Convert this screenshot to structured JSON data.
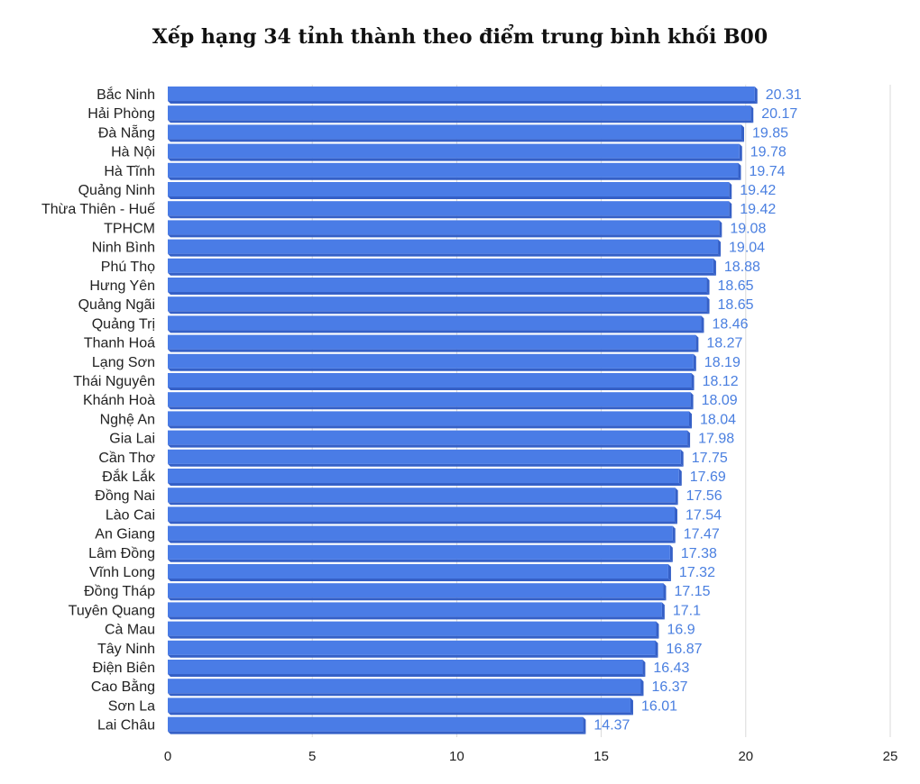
{
  "chart_data": {
    "type": "bar",
    "orientation": "horizontal",
    "title": "Xếp hạng 34 tỉnh thành theo điểm trung bình khối B00",
    "xlabel": "",
    "ylabel": "",
    "xlim": [
      0,
      25
    ],
    "xticks": [
      0,
      5,
      10,
      15,
      20,
      25
    ],
    "grid": "vertical",
    "legend": "none",
    "colors": {
      "bar": "#4a7ce6",
      "bar_dark": "#3560c7",
      "value_label": "#4a7fe0",
      "grid": "#d9d9d9"
    },
    "categories": [
      "Bắc Ninh",
      "Hải Phòng",
      "Đà Nẵng",
      "Hà Nội",
      "Hà Tĩnh",
      "Quảng Ninh",
      "Thừa Thiên - Huế",
      "TPHCM",
      "Ninh Bình",
      "Phú Thọ",
      "Hưng Yên",
      "Quảng Ngãi",
      "Quảng Trị",
      "Thanh Hoá",
      "Lạng Sơn",
      "Thái Nguyên",
      "Khánh Hoà",
      "Nghệ An",
      "Gia Lai",
      "Cần Thơ",
      "Đắk Lắk",
      "Đồng Nai",
      "Lào Cai",
      "An Giang",
      "Lâm Đồng",
      "Vĩnh Long",
      "Đồng Tháp",
      "Tuyên Quang",
      "Cà Mau",
      "Tây Ninh",
      "Điện Biên",
      "Cao Bằng",
      "Sơn La",
      "Lai Châu"
    ],
    "values": [
      20.31,
      20.17,
      19.85,
      19.78,
      19.74,
      19.42,
      19.42,
      19.08,
      19.04,
      18.88,
      18.65,
      18.65,
      18.46,
      18.27,
      18.19,
      18.12,
      18.09,
      18.04,
      17.98,
      17.75,
      17.69,
      17.56,
      17.54,
      17.47,
      17.38,
      17.32,
      17.15,
      17.1,
      16.9,
      16.87,
      16.43,
      16.37,
      16.01,
      14.37
    ],
    "value_labels": [
      "20.31",
      "20.17",
      "19.85",
      "19.78",
      "19.74",
      "19.42",
      "19.42",
      "19.08",
      "19.04",
      "18.88",
      "18.65",
      "18.65",
      "18.46",
      "18.27",
      "18.19",
      "18.12",
      "18.09",
      "18.04",
      "17.98",
      "17.75",
      "17.69",
      "17.56",
      "17.54",
      "17.47",
      "17.38",
      "17.32",
      "17.15",
      "17.1",
      "16.9",
      "16.87",
      "16.43",
      "16.37",
      "16.01",
      "14.37"
    ]
  }
}
